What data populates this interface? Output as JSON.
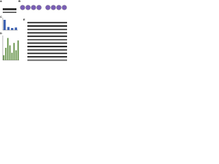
{
  "panels": [
    "A",
    "B",
    "C",
    "D",
    "E"
  ],
  "bar_charts": [
    {
      "type": "bar",
      "values": [
        1,
        0.3,
        0.2,
        0.25
      ],
      "color": "#3a5fb0",
      "ylim": [
        0,
        1.2
      ]
    },
    {
      "type": "bar",
      "values": [
        0.2,
        0.5,
        0.9,
        0.6,
        0.3,
        0.7,
        0.4,
        0.8
      ],
      "color": "#5a8a3a",
      "ylim": [
        0,
        1
      ]
    }
  ]
}
